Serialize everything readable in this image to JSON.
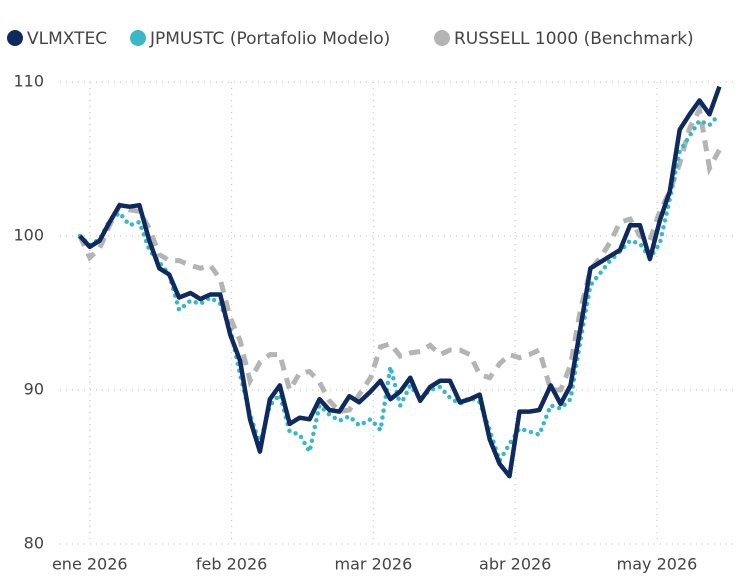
{
  "chart_data": {
    "type": "line",
    "x": [
      -0.07,
      0,
      0.07,
      0.14,
      0.21,
      0.28,
      0.35,
      0.42,
      0.49,
      0.56,
      0.63,
      0.71,
      0.78,
      0.85,
      0.92,
      0.99,
      1.06,
      1.13,
      1.2,
      1.27,
      1.34,
      1.41,
      1.48,
      1.55,
      1.62,
      1.69,
      1.76,
      1.83,
      1.9,
      1.98,
      2.05,
      2.12,
      2.19,
      2.26,
      2.33,
      2.4,
      2.47,
      2.54,
      2.61,
      2.68,
      2.75,
      2.82,
      2.89,
      2.96,
      3.03,
      3.1,
      3.17,
      3.25,
      3.32,
      3.39,
      3.46,
      3.53,
      3.6,
      3.67,
      3.74,
      3.81,
      3.88,
      3.95,
      4.02,
      4.09,
      4.16,
      4.23,
      4.3,
      4.37,
      4.44
    ],
    "series": [
      {
        "name": "VLMXTEC",
        "color": "#0f2a5e",
        "style": "solid",
        "values": [
          100.0,
          99.3,
          99.7,
          100.9,
          102.0,
          101.9,
          102.0,
          99.7,
          97.9,
          97.5,
          96.0,
          96.3,
          95.9,
          96.2,
          96.2,
          93.6,
          91.9,
          88.1,
          86.0,
          89.4,
          90.3,
          87.8,
          88.2,
          88.1,
          89.4,
          88.7,
          88.6,
          89.6,
          89.2,
          89.9,
          90.6,
          89.4,
          89.9,
          90.8,
          89.3,
          90.2,
          90.6,
          90.6,
          89.2,
          89.4,
          89.7,
          86.8,
          85.2,
          84.4,
          88.6,
          88.6,
          88.7,
          90.3,
          89.1,
          90.3,
          94.0,
          97.9,
          98.3,
          98.7,
          99.1,
          100.7,
          100.7,
          98.5,
          101.0,
          102.9,
          106.9,
          107.9,
          108.8,
          107.9,
          109.7
        ]
      },
      {
        "name": "JPMUSTC (Portafolio Modelo)",
        "color": "#3ab8c8",
        "style": "dotted",
        "values": [
          100.0,
          99.4,
          99.8,
          101.0,
          101.5,
          100.7,
          100.9,
          99.1,
          98.3,
          97.5,
          95.2,
          95.8,
          95.6,
          96.0,
          95.6,
          94.0,
          91.0,
          88.4,
          86.5,
          89.0,
          89.7,
          87.3,
          87.1,
          86.0,
          89.0,
          88.4,
          88.0,
          88.3,
          87.7,
          88.1,
          87.4,
          91.5,
          89.0,
          90.3,
          89.4,
          90.0,
          90.2,
          89.5,
          89.1,
          89.5,
          89.2,
          87.4,
          85.4,
          86.5,
          87.5,
          87.3,
          87.1,
          89.0,
          88.8,
          89.4,
          93.2,
          96.8,
          97.6,
          98.4,
          99.0,
          99.7,
          99.5,
          98.6,
          99.5,
          102.4,
          105.5,
          106.5,
          107.5,
          107.2,
          107.9
        ]
      },
      {
        "name": "RUSSELL 1000 (Benchmark)",
        "color": "#b4b4b4",
        "style": "dashed",
        "values": [
          100.0,
          98.6,
          99.2,
          100.7,
          102.0,
          101.7,
          101.6,
          100.5,
          98.8,
          98.4,
          98.4,
          98.1,
          97.9,
          98.1,
          97.2,
          94.7,
          93.2,
          90.6,
          91.8,
          92.3,
          92.3,
          90.0,
          91.1,
          91.2,
          90.5,
          89.3,
          88.6,
          88.7,
          89.7,
          90.8,
          92.8,
          93.0,
          92.2,
          92.4,
          92.5,
          92.9,
          92.3,
          92.6,
          92.6,
          92.3,
          91.0,
          90.8,
          91.7,
          92.3,
          92.1,
          92.3,
          92.6,
          90.0,
          90.0,
          91.6,
          95.2,
          97.8,
          98.6,
          99.6,
          100.9,
          101.1,
          100.0,
          99.7,
          101.6,
          102.9,
          104.7,
          107.0,
          108.2,
          104.4,
          105.6
        ]
      }
    ],
    "xlim": [
      -0.21,
      4.55
    ],
    "xticks": [
      {
        "value": 0,
        "label": "ene 2026"
      },
      {
        "value": 1,
        "label": "feb 2026"
      },
      {
        "value": 2,
        "label": "mar 2026"
      },
      {
        "value": 3,
        "label": "abr 2026"
      },
      {
        "value": 4,
        "label": "may 2026"
      }
    ],
    "ylim": [
      80,
      110
    ],
    "yticks": [
      80,
      90,
      100,
      110
    ],
    "grid": true,
    "legend": "top"
  }
}
